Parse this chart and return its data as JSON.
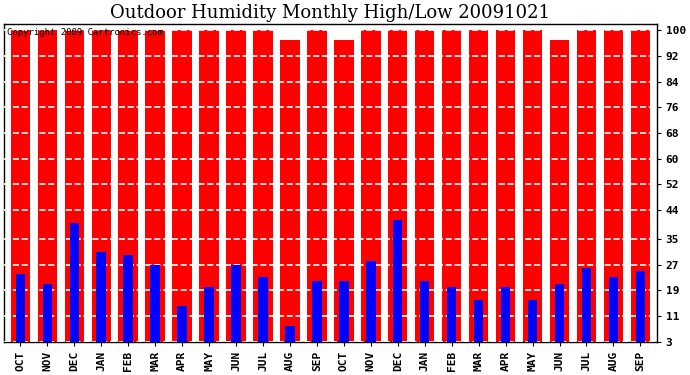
{
  "title": "Outdoor Humidity Monthly High/Low 20091021",
  "copyright_text": "Copyright 2009 Cartronics.com",
  "months": [
    "OCT",
    "NOV",
    "DEC",
    "JAN",
    "FEB",
    "MAR",
    "APR",
    "MAY",
    "JUN",
    "JUL",
    "AUG",
    "SEP",
    "OCT",
    "NOV",
    "DEC",
    "JAN",
    "FEB",
    "MAR",
    "APR",
    "MAY",
    "JUN",
    "JUL",
    "AUG",
    "SEP"
  ],
  "highs": [
    100,
    100,
    100,
    100,
    100,
    100,
    100,
    100,
    100,
    100,
    97,
    100,
    97,
    100,
    100,
    100,
    100,
    100,
    100,
    100,
    97,
    100,
    100,
    100
  ],
  "lows": [
    24,
    21,
    40,
    31,
    30,
    27,
    14,
    20,
    27,
    23,
    8,
    22,
    22,
    28,
    41,
    22,
    20,
    16,
    20,
    16,
    21,
    26,
    23,
    25
  ],
  "high_color": "#ff0000",
  "low_color": "#0000ff",
  "bg_color": "#ffffff",
  "yticks": [
    3,
    11,
    19,
    27,
    35,
    44,
    52,
    60,
    68,
    76,
    84,
    92,
    100
  ],
  "ymin": 3,
  "ymax": 102,
  "title_fontsize": 13,
  "tick_fontsize": 8,
  "high_bar_width": 0.72,
  "low_bar_width": 0.35,
  "grid_color": "white",
  "grid_style": "--",
  "box_color": "#000000",
  "figwidth": 6.9,
  "figheight": 3.75,
  "dpi": 100
}
